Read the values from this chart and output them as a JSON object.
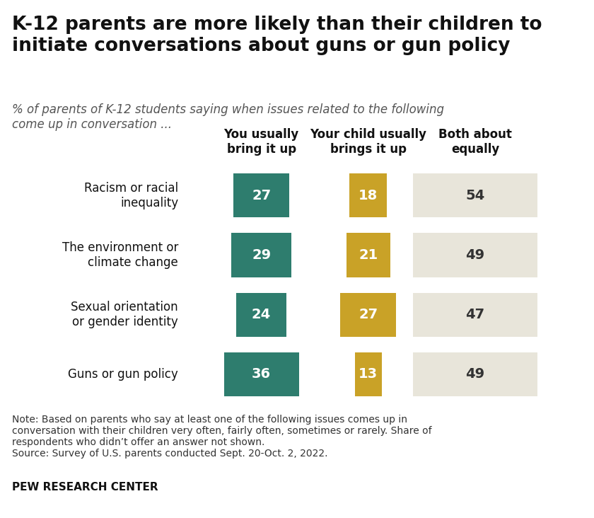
{
  "title": "K-12 parents are more likely than their children to\ninitiate conversations about guns or gun policy",
  "subtitle": "% of parents of K-12 students saying when issues related to the following\ncome up in conversation ...",
  "col_headers": [
    "You usually\nbring it up",
    "Your child usually\nbrings it up",
    "Both about\nequally"
  ],
  "categories": [
    "Racism or racial\ninequality",
    "The environment or\nclimate change",
    "Sexual orientation\nor gender identity",
    "Guns or gun policy"
  ],
  "col1_values": [
    27,
    29,
    24,
    36
  ],
  "col2_values": [
    18,
    21,
    27,
    13
  ],
  "col3_values": [
    54,
    49,
    47,
    49
  ],
  "col1_color": "#2e7d6e",
  "col2_color": "#c9a227",
  "col3_color": "#e8e5da",
  "col1_text_color": "#ffffff",
  "col2_text_color": "#ffffff",
  "col3_text_color": "#333333",
  "note": "Note: Based on parents who say at least one of the following issues comes up in\nconversation with their children very often, fairly often, sometimes or rarely. Share of\nrespondents who didn’t offer an answer not shown.\nSource: Survey of U.S. parents conducted Sept. 20-Oct. 2, 2022.",
  "source_label": "PEW RESEARCH CENTER",
  "bg_color": "#ffffff",
  "title_fontsize": 19,
  "subtitle_fontsize": 12,
  "category_fontsize": 12,
  "value_fontsize": 14,
  "header_fontsize": 12,
  "note_fontsize": 10,
  "source_fontsize": 11
}
